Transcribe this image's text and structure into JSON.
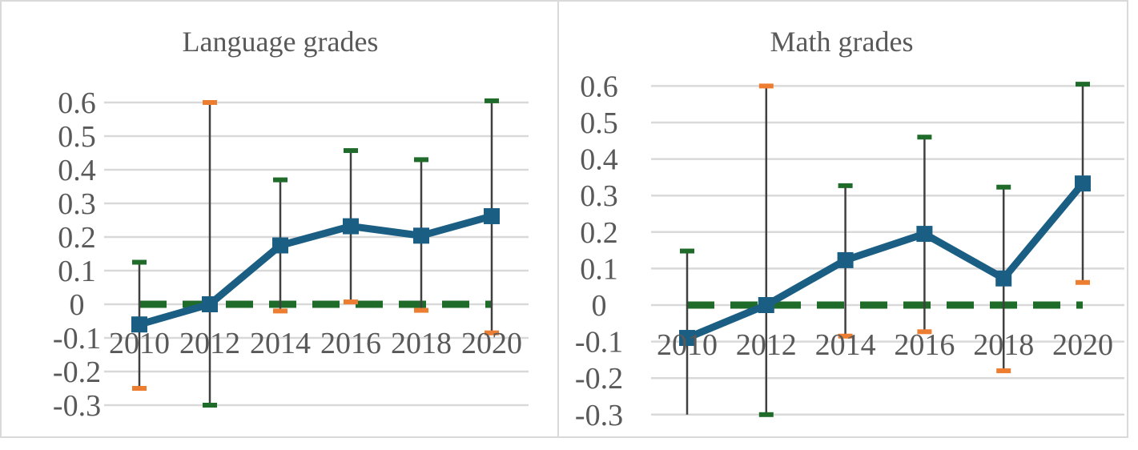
{
  "chart_data": [
    {
      "type": "line",
      "title": "Language grades",
      "categories": [
        "2010",
        "2012",
        "2014",
        "2016",
        "2018",
        "2020"
      ],
      "ylim": [
        -0.3,
        0.6
      ],
      "yticks": [
        "0.6",
        "0.5",
        "0.4",
        "0.3",
        "0.2",
        "0.1",
        "0",
        "-0.1",
        "-0.2",
        "-0.3"
      ],
      "grid": true,
      "series": [
        {
          "color": "#1b5e84",
          "values": [
            -0.06,
            0.0,
            0.175,
            0.232,
            0.204,
            0.262
          ]
        },
        {
          "color": "#1f6b2a",
          "dashed": true,
          "values": [
            0,
            0,
            0,
            0,
            0,
            0
          ]
        }
      ],
      "error_bars": {
        "low": [
          -0.25,
          -0.3,
          -0.02,
          0.007,
          -0.018,
          -0.085
        ],
        "high": [
          0.125,
          0.6,
          0.37,
          0.457,
          0.43,
          0.605
        ],
        "low_colors": [
          "#ed7d31",
          "#1f6b2a",
          "#ed7d31",
          "#ed7d31",
          "#ed7d31",
          "#ed7d31"
        ],
        "high_colors": [
          "#1f6b2a",
          "#ed7d31",
          "#1f6b2a",
          "#1f6b2a",
          "#1f6b2a",
          "#1f6b2a"
        ]
      }
    },
    {
      "type": "line",
      "title": "Math grades",
      "categories": [
        "2010",
        "2012",
        "2014",
        "2016",
        "2018",
        "2020"
      ],
      "ylim": [
        -0.3,
        0.6
      ],
      "yticks": [
        "0.6",
        "0.5",
        "0.4",
        "0.3",
        "0.2",
        "0.1",
        "0",
        "-0.1",
        "-0.2",
        "-0.3"
      ],
      "grid": true,
      "series": [
        {
          "color": "#1b5e84",
          "values": [
            -0.09,
            0.0,
            0.123,
            0.195,
            0.073,
            0.333
          ]
        },
        {
          "color": "#1f6b2a",
          "dashed": true,
          "values": [
            0,
            0,
            0,
            0,
            0,
            0
          ]
        }
      ],
      "error_bars": {
        "low": [
          -0.3,
          -0.3,
          -0.085,
          -0.073,
          -0.18,
          0.062
        ],
        "high": [
          0.148,
          0.6,
          0.327,
          0.46,
          0.323,
          0.605
        ],
        "low_colors": [
          null,
          "#1f6b2a",
          "#ed7d31",
          "#ed7d31",
          "#ed7d31",
          "#ed7d31"
        ],
        "high_colors": [
          "#1f6b2a",
          "#ed7d31",
          "#1f6b2a",
          "#1f6b2a",
          "#1f6b2a",
          "#1f6b2a"
        ]
      }
    }
  ],
  "colors": {
    "gridline": "#d9d9d9",
    "border": "#d9d9d9",
    "errorbar": "#404040",
    "text": "#595959"
  }
}
